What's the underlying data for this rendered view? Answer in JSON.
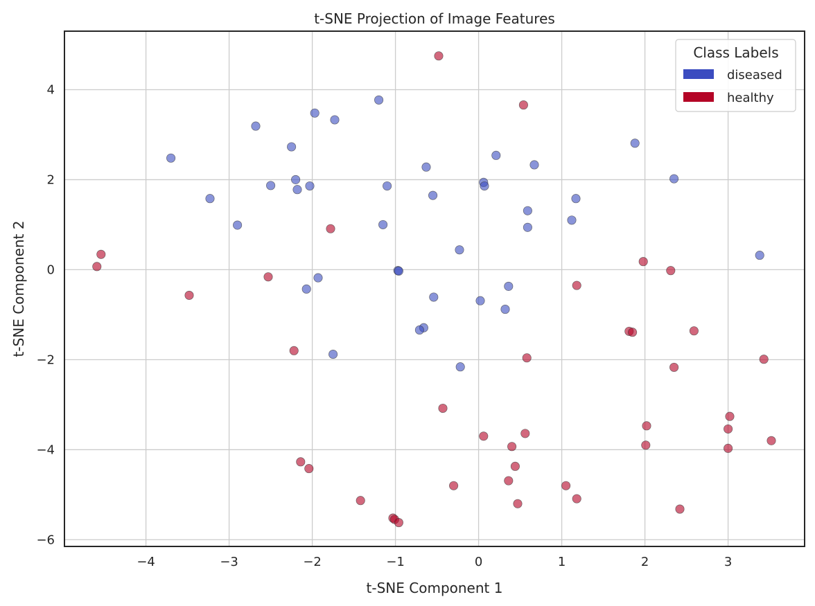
{
  "chart_data": {
    "type": "scatter",
    "title": "t-SNE Projection of Image Features",
    "xlabel": "t-SNE Component 1",
    "ylabel": "t-SNE Component 2",
    "xlim": [
      -4.98,
      3.92
    ],
    "ylim": [
      -6.15,
      5.3
    ],
    "xticks": [
      -4,
      -3,
      -2,
      -1,
      0,
      1,
      2,
      3
    ],
    "yticks": [
      -6,
      -4,
      -2,
      0,
      2,
      4
    ],
    "grid": true,
    "legend": {
      "title": "Class Labels",
      "placement": "top-right"
    },
    "series": [
      {
        "name": "diseased",
        "color": "#3b4cc0",
        "points": [
          [
            -3.7,
            2.48
          ],
          [
            -3.23,
            1.58
          ],
          [
            -2.9,
            0.99
          ],
          [
            -2.68,
            3.19
          ],
          [
            -2.5,
            1.87
          ],
          [
            -2.25,
            2.73
          ],
          [
            -2.2,
            2.0
          ],
          [
            -2.18,
            1.78
          ],
          [
            -2.03,
            1.86
          ],
          [
            -1.97,
            3.48
          ],
          [
            -1.73,
            3.33
          ],
          [
            -1.2,
            3.77
          ],
          [
            -1.1,
            1.86
          ],
          [
            -1.15,
            1.0
          ],
          [
            -0.63,
            2.28
          ],
          [
            -0.55,
            1.65
          ],
          [
            -0.97,
            -0.02
          ],
          [
            -0.96,
            -0.03
          ],
          [
            -0.23,
            0.44
          ],
          [
            -0.54,
            -0.61
          ],
          [
            -0.66,
            -1.29
          ],
          [
            -0.71,
            -1.34
          ],
          [
            -0.22,
            -2.16
          ],
          [
            -2.07,
            -0.43
          ],
          [
            -1.93,
            -0.18
          ],
          [
            -1.75,
            -1.88
          ],
          [
            0.06,
            1.94
          ],
          [
            0.07,
            1.86
          ],
          [
            0.21,
            2.54
          ],
          [
            0.67,
            2.33
          ],
          [
            0.59,
            1.31
          ],
          [
            0.59,
            0.94
          ],
          [
            1.17,
            1.58
          ],
          [
            1.12,
            1.1
          ],
          [
            0.02,
            -0.69
          ],
          [
            0.36,
            -0.37
          ],
          [
            0.32,
            -0.88
          ],
          [
            1.88,
            2.81
          ],
          [
            2.35,
            2.02
          ],
          [
            3.38,
            0.32
          ]
        ]
      },
      {
        "name": "healthy",
        "color": "#b40426",
        "points": [
          [
            -0.48,
            4.75
          ],
          [
            0.54,
            3.66
          ],
          [
            -1.78,
            0.91
          ],
          [
            -4.54,
            0.34
          ],
          [
            -4.59,
            0.07
          ],
          [
            -2.53,
            -0.16
          ],
          [
            -3.48,
            -0.57
          ],
          [
            -2.22,
            -1.8
          ],
          [
            -0.43,
            -3.08
          ],
          [
            -2.14,
            -4.27
          ],
          [
            -2.04,
            -4.42
          ],
          [
            -1.42,
            -5.13
          ],
          [
            -1.03,
            -5.52
          ],
          [
            -1.01,
            -5.55
          ],
          [
            -0.96,
            -5.62
          ],
          [
            -0.3,
            -4.8
          ],
          [
            0.06,
            -3.7
          ],
          [
            0.4,
            -3.93
          ],
          [
            0.56,
            -3.64
          ],
          [
            0.44,
            -4.37
          ],
          [
            0.36,
            -4.69
          ],
          [
            0.47,
            -5.2
          ],
          [
            1.05,
            -4.8
          ],
          [
            1.18,
            -5.09
          ],
          [
            0.58,
            -1.96
          ],
          [
            1.18,
            -0.35
          ],
          [
            1.98,
            0.18
          ],
          [
            2.31,
            -0.02
          ],
          [
            1.81,
            -1.37
          ],
          [
            1.85,
            -1.39
          ],
          [
            2.59,
            -1.36
          ],
          [
            2.35,
            -2.17
          ],
          [
            3.43,
            -1.99
          ],
          [
            2.02,
            -3.47
          ],
          [
            2.01,
            -3.9
          ],
          [
            3.02,
            -3.26
          ],
          [
            3.0,
            -3.54
          ],
          [
            3.0,
            -3.97
          ],
          [
            3.52,
            -3.8
          ],
          [
            2.42,
            -5.32
          ]
        ]
      }
    ]
  }
}
